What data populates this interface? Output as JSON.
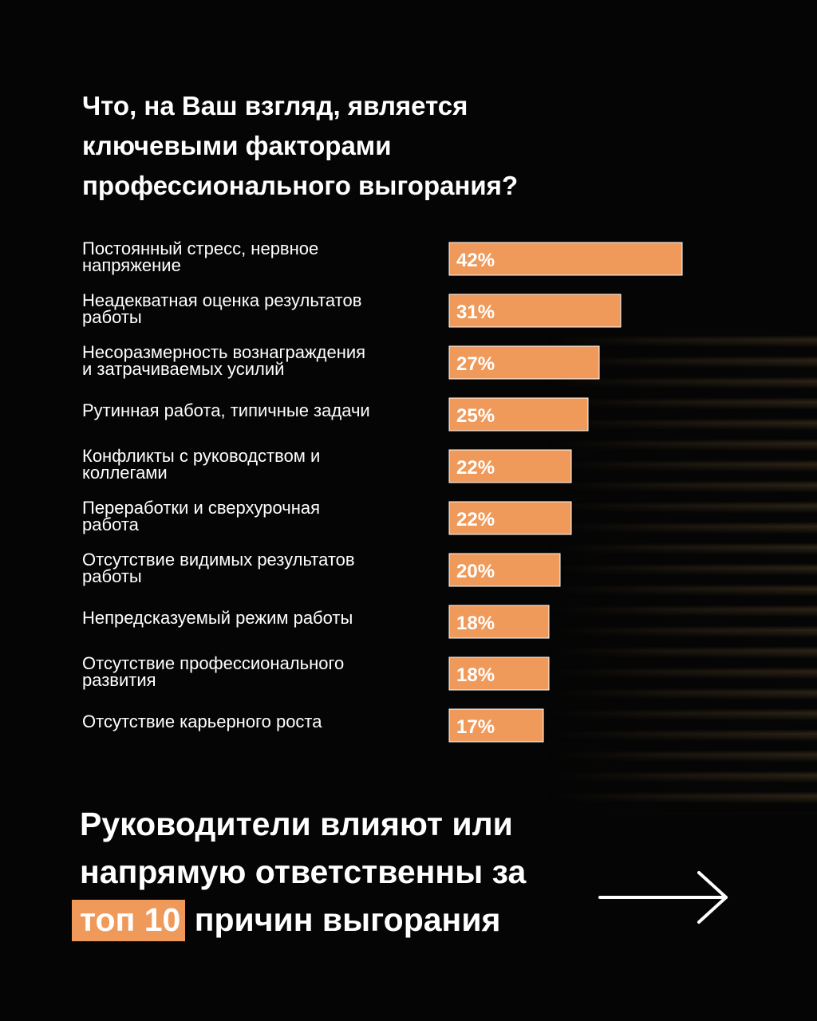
{
  "title_lines": [
    "Что, на Ваш взгляд, является",
    "ключевыми факторами",
    "профессионального выгорания?"
  ],
  "chart_data": {
    "type": "bar",
    "orientation": "horizontal",
    "categories": [
      [
        "Постоянный стресс, нервное",
        "напряжение"
      ],
      [
        "Неадекватная оценка результатов",
        "работы"
      ],
      [
        "Несоразмерность вознаграждения",
        "и затрачиваемых усилий"
      ],
      [
        "Рутинная работа, типичные задачи"
      ],
      [
        "Конфликты с руководством и",
        "коллегами"
      ],
      [
        "Переработки и сверхурочная",
        "работа"
      ],
      [
        "Отсутствие видимых результатов",
        "работы"
      ],
      [
        "Непредсказуемый режим работы"
      ],
      [
        "Отсутствие профессионального",
        "развития"
      ],
      [
        "Отсутствие карьерного роста"
      ]
    ],
    "values": [
      42,
      31,
      27,
      25,
      22,
      22,
      20,
      18,
      18,
      17
    ],
    "value_labels": [
      "42%",
      "31%",
      "27%",
      "25%",
      "22%",
      "22%",
      "20%",
      "18%",
      "18%",
      "17%"
    ],
    "unit": "%",
    "bar_color": "#ef9a5a",
    "grid": false,
    "legend": false
  },
  "conclusion": {
    "line1": "Руководители влияют или",
    "line2": "напрямую ответственны за",
    "highlight": "топ 10",
    "line3_rest": " причин выгорания"
  },
  "colors": {
    "accent": "#ef9a5a",
    "background": "#050505",
    "text": "#ffffff"
  },
  "icons": {
    "next": "arrow-right-icon"
  }
}
